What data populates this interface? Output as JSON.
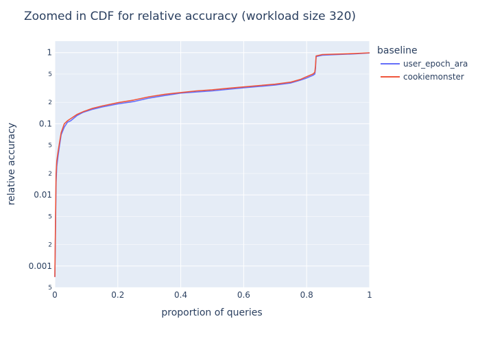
{
  "chart_data": {
    "type": "line",
    "title": "Zoomed in CDF for relative accuracy (workload size 320)",
    "xlabel": "proportion of queries",
    "ylabel": "relative accuracy",
    "xlim": [
      0,
      1
    ],
    "ylim": [
      0.0005,
      1.45
    ],
    "yscale": "log",
    "grid": true,
    "background": "#e5ecf6",
    "x_ticks": [
      "0",
      "0.2",
      "0.4",
      "0.6",
      "0.8",
      "1"
    ],
    "y_major_ticks": [
      "0.001",
      "0.01",
      "0.1",
      "1"
    ],
    "y_minor_ticks": [
      "5",
      "2",
      "5",
      "2",
      "5",
      "2",
      "5"
    ],
    "legend": {
      "title": "baseline",
      "position": "right"
    },
    "series": [
      {
        "name": "user_epoch_ara",
        "color": "#636efa",
        "points": [
          [
            0.0,
            0.0007
          ],
          [
            0.002,
            0.003
          ],
          [
            0.004,
            0.015
          ],
          [
            0.006,
            0.025
          ],
          [
            0.01,
            0.035
          ],
          [
            0.015,
            0.05
          ],
          [
            0.02,
            0.07
          ],
          [
            0.03,
            0.09
          ],
          [
            0.04,
            0.105
          ],
          [
            0.05,
            0.11
          ],
          [
            0.07,
            0.13
          ],
          [
            0.09,
            0.145
          ],
          [
            0.12,
            0.16
          ],
          [
            0.15,
            0.172
          ],
          [
            0.2,
            0.19
          ],
          [
            0.25,
            0.205
          ],
          [
            0.3,
            0.23
          ],
          [
            0.35,
            0.25
          ],
          [
            0.4,
            0.27
          ],
          [
            0.45,
            0.28
          ],
          [
            0.5,
            0.29
          ],
          [
            0.55,
            0.305
          ],
          [
            0.6,
            0.32
          ],
          [
            0.65,
            0.335
          ],
          [
            0.7,
            0.35
          ],
          [
            0.75,
            0.375
          ],
          [
            0.78,
            0.41
          ],
          [
            0.8,
            0.44
          ],
          [
            0.82,
            0.48
          ],
          [
            0.826,
            0.5
          ],
          [
            0.828,
            0.6
          ],
          [
            0.83,
            0.88
          ],
          [
            0.85,
            0.92
          ],
          [
            0.9,
            0.94
          ],
          [
            0.95,
            0.96
          ],
          [
            1.0,
            0.99
          ]
        ]
      },
      {
        "name": "cookiemonster",
        "color": "#ef553b",
        "points": [
          [
            0.0,
            0.0007
          ],
          [
            0.002,
            0.004
          ],
          [
            0.004,
            0.02
          ],
          [
            0.006,
            0.03
          ],
          [
            0.01,
            0.04
          ],
          [
            0.015,
            0.055
          ],
          [
            0.02,
            0.075
          ],
          [
            0.03,
            0.1
          ],
          [
            0.04,
            0.11
          ],
          [
            0.05,
            0.118
          ],
          [
            0.07,
            0.135
          ],
          [
            0.09,
            0.148
          ],
          [
            0.12,
            0.165
          ],
          [
            0.15,
            0.178
          ],
          [
            0.2,
            0.198
          ],
          [
            0.25,
            0.215
          ],
          [
            0.3,
            0.24
          ],
          [
            0.35,
            0.26
          ],
          [
            0.4,
            0.275
          ],
          [
            0.45,
            0.29
          ],
          [
            0.5,
            0.3
          ],
          [
            0.55,
            0.315
          ],
          [
            0.6,
            0.33
          ],
          [
            0.65,
            0.345
          ],
          [
            0.7,
            0.36
          ],
          [
            0.75,
            0.385
          ],
          [
            0.78,
            0.42
          ],
          [
            0.8,
            0.46
          ],
          [
            0.82,
            0.5
          ],
          [
            0.826,
            0.53
          ],
          [
            0.828,
            0.65
          ],
          [
            0.83,
            0.9
          ],
          [
            0.85,
            0.94
          ],
          [
            0.9,
            0.955
          ],
          [
            0.95,
            0.97
          ],
          [
            1.0,
            0.995
          ]
        ]
      }
    ]
  }
}
